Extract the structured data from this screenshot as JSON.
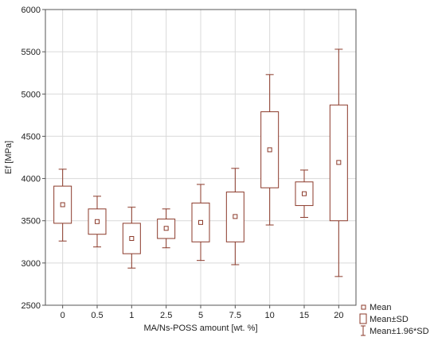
{
  "chart_data": {
    "type": "box",
    "xlabel": "MA/Ns-POSS amount [wt. %]",
    "ylabel": "Ef [MPa]",
    "ylim": [
      2500,
      6000
    ],
    "yticks": [
      2500,
      3000,
      3500,
      4000,
      4500,
      5000,
      5500,
      6000
    ],
    "grid": true,
    "legend_position": "bottom-right",
    "legend": [
      "Mean",
      "Mean±SD",
      "Mean±1.96*SD"
    ],
    "categories": [
      "0",
      "0.5",
      "1",
      "2.5",
      "5",
      "7.5",
      "10",
      "15",
      "20"
    ],
    "series": [
      {
        "mean": 3690,
        "sd_low": 3470,
        "sd_high": 3910,
        "ci_low": 3260,
        "ci_high": 4110
      },
      {
        "mean": 3490,
        "sd_low": 3340,
        "sd_high": 3640,
        "ci_low": 3190,
        "ci_high": 3790
      },
      {
        "mean": 3290,
        "sd_low": 3110,
        "sd_high": 3470,
        "ci_low": 2940,
        "ci_high": 3660
      },
      {
        "mean": 3410,
        "sd_low": 3290,
        "sd_high": 3520,
        "ci_low": 3180,
        "ci_high": 3640
      },
      {
        "mean": 3480,
        "sd_low": 3250,
        "sd_high": 3710,
        "ci_low": 3030,
        "ci_high": 3930
      },
      {
        "mean": 3550,
        "sd_low": 3250,
        "sd_high": 3840,
        "ci_low": 2980,
        "ci_high": 4120
      },
      {
        "mean": 4340,
        "sd_low": 3890,
        "sd_high": 4790,
        "ci_low": 3450,
        "ci_high": 5230
      },
      {
        "mean": 3820,
        "sd_low": 3680,
        "sd_high": 3960,
        "ci_low": 3540,
        "ci_high": 4100
      },
      {
        "mean": 4190,
        "sd_low": 3500,
        "sd_high": 4870,
        "ci_low": 2840,
        "ci_high": 5530
      }
    ],
    "colors": {
      "box": "#8b3a2a",
      "grid": "#d9d9d9",
      "frame": "#555555"
    }
  }
}
